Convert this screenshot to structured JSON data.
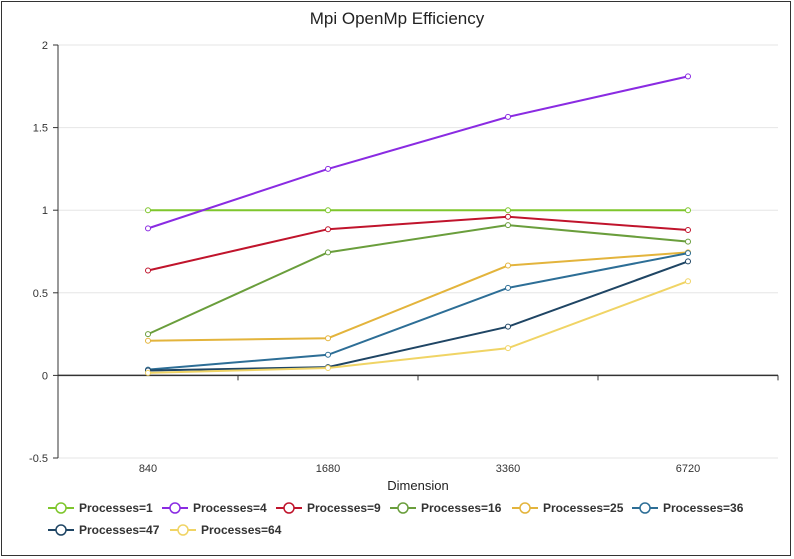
{
  "chart_data": {
    "type": "line",
    "title": "Mpi OpenMp Efficiency",
    "xlabel": "Dimension",
    "ylabel": "",
    "categories": [
      "840",
      "1680",
      "3360",
      "6720"
    ],
    "ylim": [
      -0.5,
      2
    ],
    "yticks": [
      -0.5,
      0,
      0.5,
      1,
      1.5,
      2
    ],
    "ytick_labels": [
      "-0.5",
      "0",
      "0.5",
      "1",
      "1.5",
      "2"
    ],
    "grid": true,
    "legend_position": "bottom-left",
    "series": [
      {
        "name": "Processes=1",
        "color": "#7ec62c",
        "values": [
          1.0,
          1.0,
          1.0,
          1.0
        ]
      },
      {
        "name": "Processes=4",
        "color": "#8a2be2",
        "values": [
          0.89,
          1.25,
          1.565,
          1.81
        ]
      },
      {
        "name": "Processes=9",
        "color": "#c0142c",
        "values": [
          0.635,
          0.885,
          0.96,
          0.88
        ]
      },
      {
        "name": "Processes=16",
        "color": "#6a9e3c",
        "values": [
          0.25,
          0.745,
          0.91,
          0.81
        ]
      },
      {
        "name": "Processes=25",
        "color": "#e3b43c",
        "values": [
          0.21,
          0.225,
          0.665,
          0.745
        ]
      },
      {
        "name": "Processes=36",
        "color": "#2d6e96",
        "values": [
          0.035,
          0.125,
          0.53,
          0.74
        ]
      },
      {
        "name": "Processes=47",
        "color": "#1f4564",
        "values": [
          0.03,
          0.05,
          0.295,
          0.69
        ]
      },
      {
        "name": "Processes=64",
        "color": "#f0d465",
        "values": [
          0.015,
          0.045,
          0.165,
          0.57
        ]
      }
    ]
  }
}
